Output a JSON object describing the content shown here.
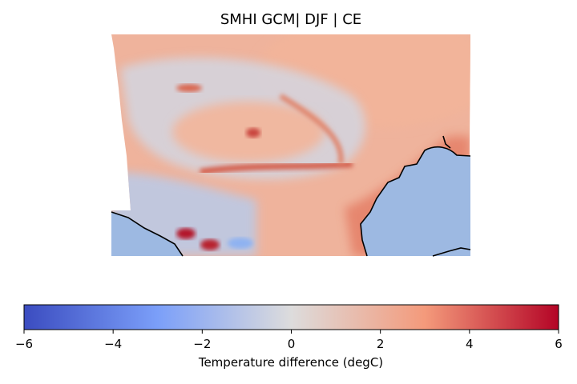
{
  "chart_data": {
    "type": "heatmap",
    "title": "SMHI GCM| DJF | CE",
    "colorbar": {
      "label": "Temperature difference (degC)",
      "vmin": -6,
      "vmax": 6,
      "ticks": [
        -6,
        -4,
        -2,
        0,
        2,
        4,
        6
      ],
      "tick_labels": [
        "−6",
        "−4",
        "−2",
        "0",
        "2",
        "4",
        "6"
      ],
      "colormap": "coolwarm",
      "orientation": "horizontal",
      "placement": "bottom"
    },
    "fields": [
      {
        "name": "background",
        "value": 1.2
      },
      {
        "name": "northeast-warm",
        "value": 2.2
      },
      {
        "name": "central-arc-cool",
        "value": -1.5
      },
      {
        "name": "southwest-cool",
        "value": -2.0
      },
      {
        "name": "warm-band-south",
        "value": 3.8
      },
      {
        "name": "southeast-coast-warm",
        "value": 3.2
      },
      {
        "name": "southwest-hotspots",
        "value": 5.5
      }
    ],
    "ocean_color": "#9db9e2",
    "coastline_color": "#000000"
  }
}
